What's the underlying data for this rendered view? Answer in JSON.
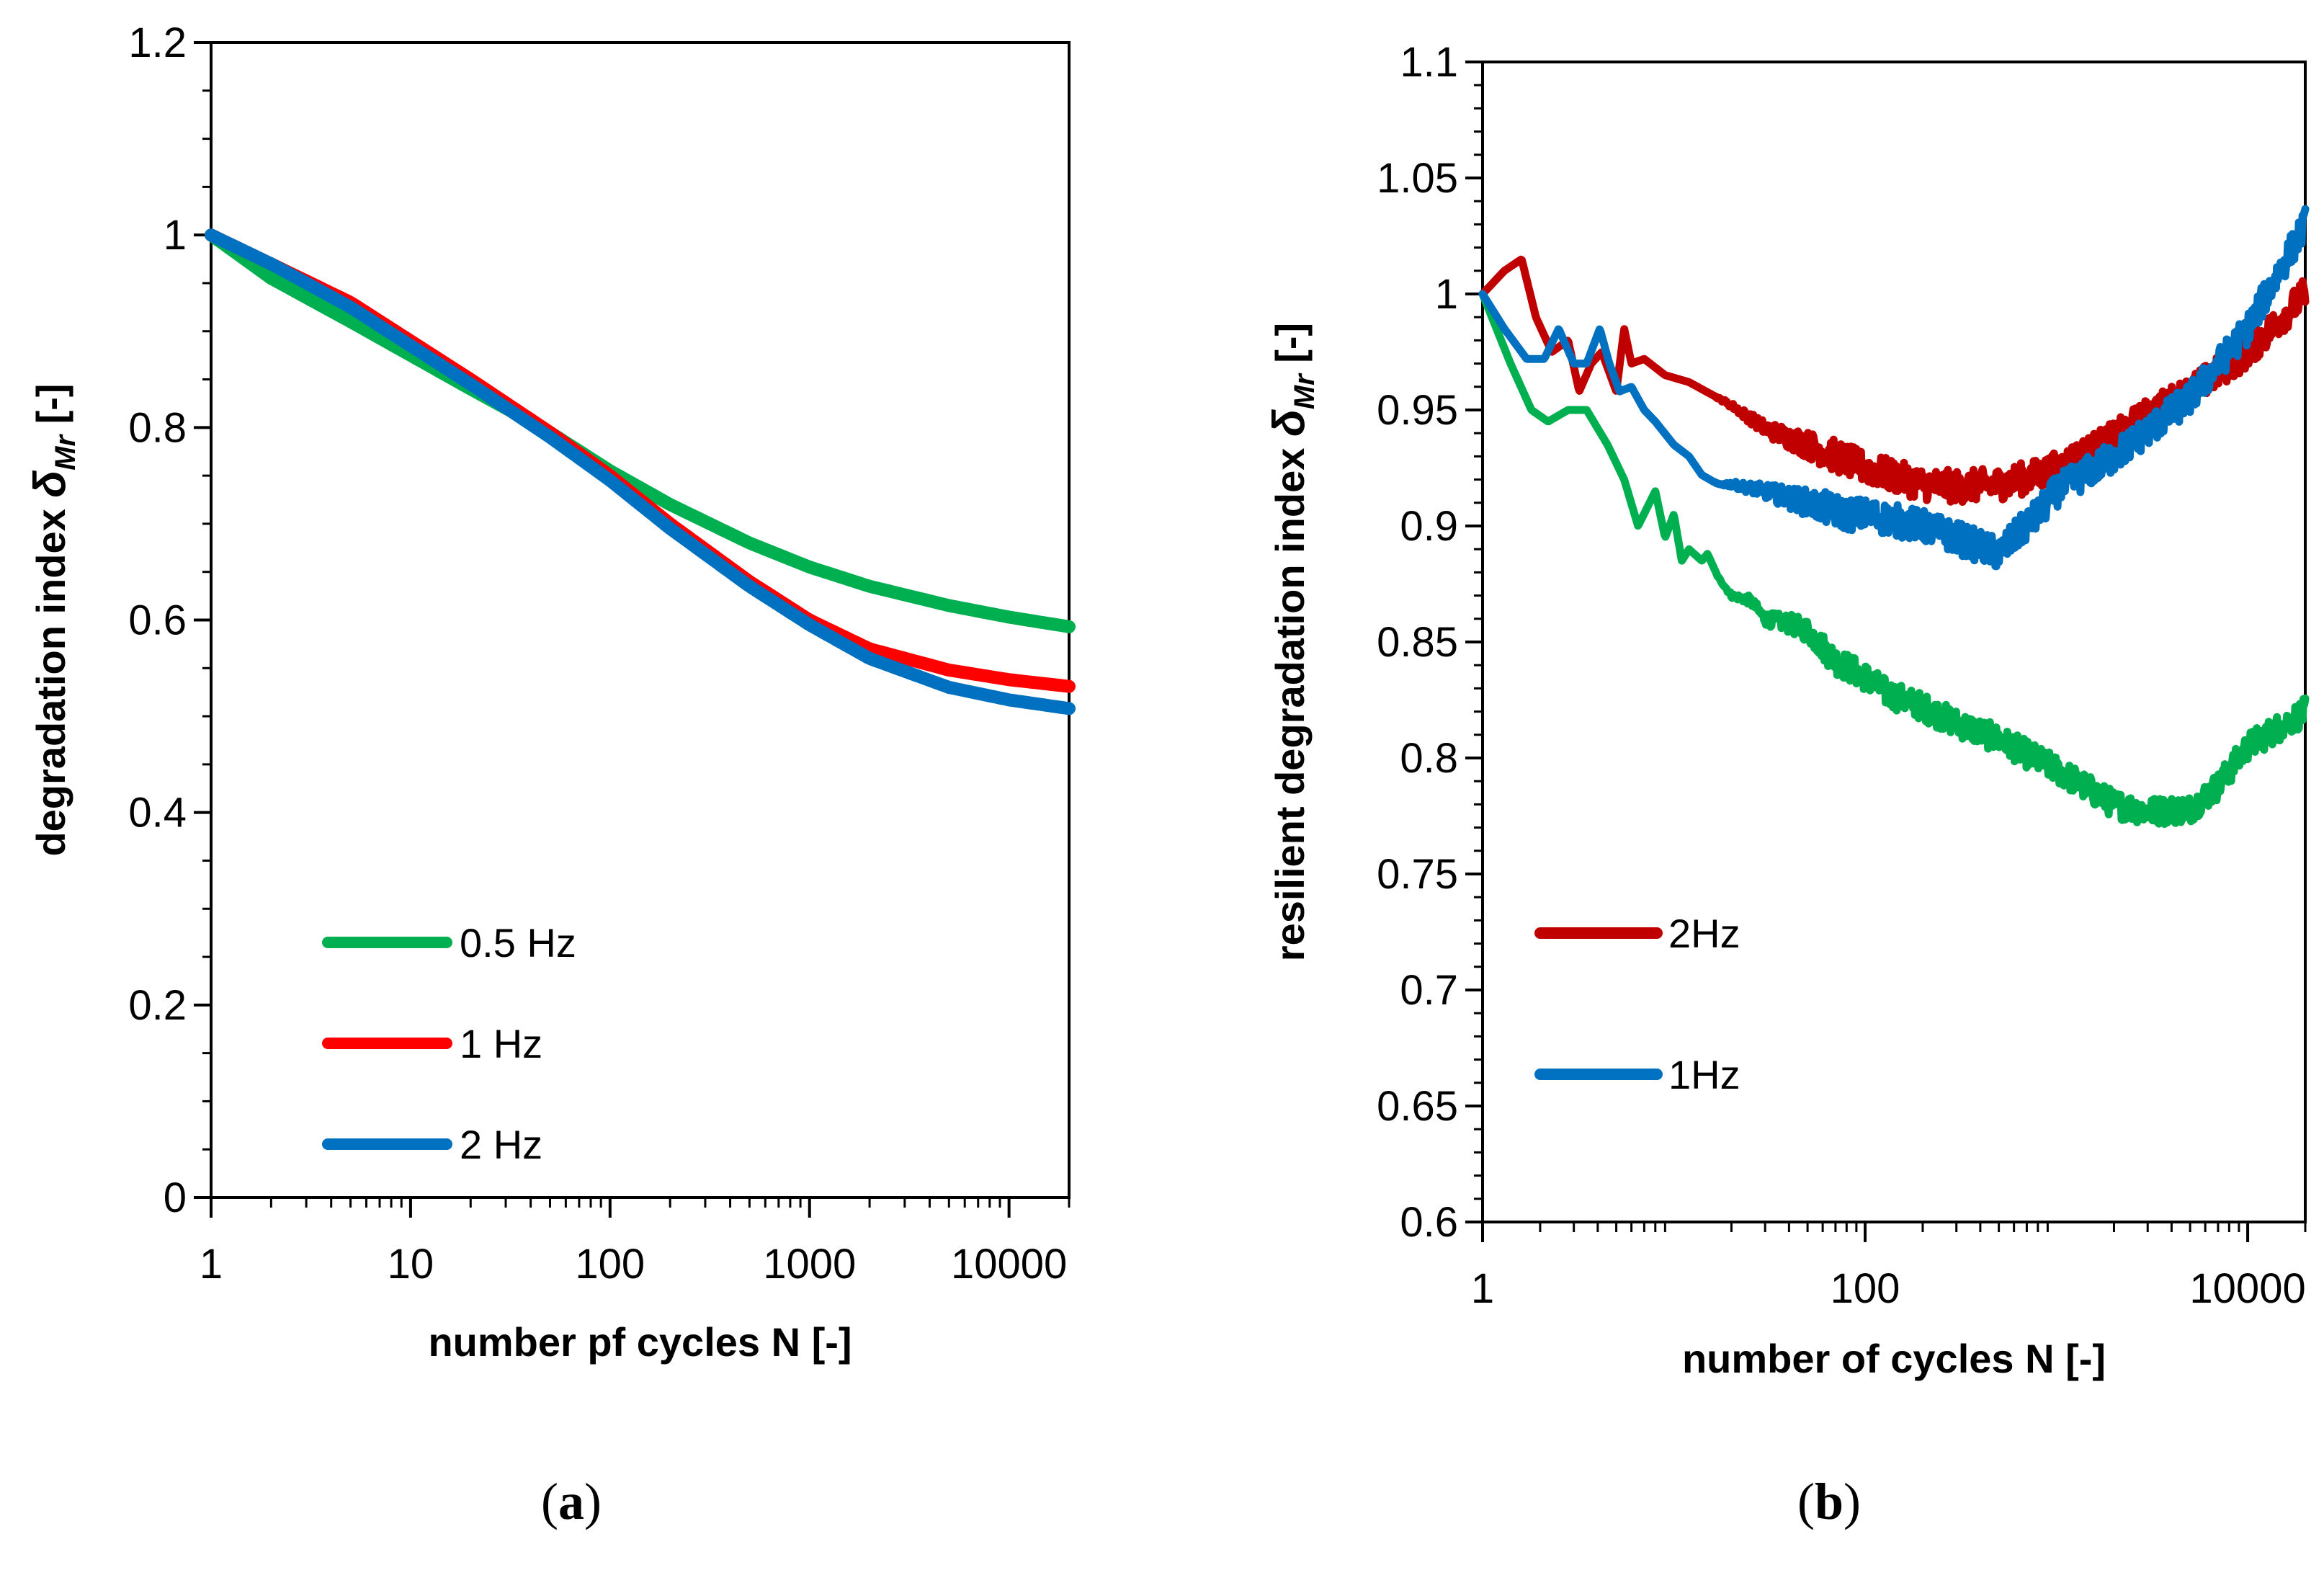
{
  "chart_data": [
    {
      "id": "a",
      "type": "line",
      "caption": {
        "open": "(",
        "letter": "a",
        "close": ")"
      },
      "xlabel": "number pf cycles N [-]",
      "ylabel_main": "degradation index ",
      "ylabel_symbol": "δ",
      "ylabel_sub": "Mr",
      "ylabel_unit": " [-]",
      "xscale": "log",
      "xlim": [
        1,
        20000
      ],
      "ylim": [
        0,
        1.2
      ],
      "x_ticks": [
        1,
        10,
        100,
        1000,
        10000
      ],
      "x_tick_labels": [
        "1",
        "10",
        "100",
        "1000",
        "10000"
      ],
      "y_ticks": [
        0,
        0.2,
        0.4,
        0.6,
        0.8,
        1,
        1.2
      ],
      "y_tick_labels": [
        "0",
        "0.2",
        "0.4",
        "0.6",
        "0.8",
        "1",
        "1.2"
      ],
      "legend_position": "lower-left",
      "series": [
        {
          "name": "0.5 Hz",
          "color": "#00b050",
          "x": [
            1,
            2,
            5,
            10,
            20,
            50,
            100,
            200,
            500,
            1000,
            2000,
            5000,
            10000,
            20000
          ],
          "y": [
            1.0,
            0.955,
            0.91,
            0.875,
            0.84,
            0.795,
            0.755,
            0.72,
            0.68,
            0.655,
            0.635,
            0.615,
            0.603,
            0.593
          ],
          "noise": 0,
          "zorder": 0
        },
        {
          "name": "1 Hz",
          "color": "#ff0000",
          "x": [
            1,
            2,
            5,
            10,
            20,
            50,
            100,
            200,
            500,
            1000,
            2000,
            5000,
            10000,
            20000
          ],
          "y": [
            1.0,
            0.97,
            0.93,
            0.89,
            0.85,
            0.795,
            0.75,
            0.7,
            0.64,
            0.6,
            0.57,
            0.548,
            0.538,
            0.531
          ],
          "noise": 0,
          "zorder": 1
        },
        {
          "name": "2 Hz",
          "color": "#0070c0",
          "x": [
            1,
            2,
            5,
            10,
            20,
            50,
            100,
            200,
            500,
            1000,
            2000,
            5000,
            10000,
            20000
          ],
          "y": [
            1.0,
            0.97,
            0.925,
            0.885,
            0.845,
            0.79,
            0.745,
            0.695,
            0.635,
            0.595,
            0.56,
            0.53,
            0.517,
            0.508
          ],
          "noise": 0,
          "zorder": 2
        }
      ]
    },
    {
      "id": "b",
      "type": "line",
      "caption": {
        "open": "(",
        "letter": "b",
        "close": ")"
      },
      "xlabel": "number of cycles N [-]",
      "ylabel_main": "resilient degradation index ",
      "ylabel_symbol": "δ",
      "ylabel_sub": "Mr",
      "ylabel_unit": " [-]",
      "xscale": "log",
      "xlim": [
        1,
        20000
      ],
      "ylim": [
        0.6,
        1.1
      ],
      "x_ticks": [
        1,
        100,
        10000
      ],
      "x_tick_labels": [
        "1",
        "100",
        "10000"
      ],
      "y_ticks": [
        0.6,
        0.65,
        0.7,
        0.75,
        0.8,
        0.85,
        0.9,
        0.95,
        1,
        1.05,
        1.1
      ],
      "y_tick_labels": [
        "0.6",
        "0.65",
        "0.7",
        "0.75",
        "0.8",
        "0.85",
        "0.9",
        "0.95",
        "1",
        "1.05",
        "1.1"
      ],
      "legend_position": "lower-left",
      "series": [
        {
          "name": "",
          "color": "#00b050",
          "in_legend": false,
          "x": [
            1,
            1.4,
            1.8,
            2.2,
            2.8,
            3.5,
            4.5,
            5.5,
            6.5,
            8,
            9,
            10,
            11,
            12,
            14,
            15,
            17,
            20,
            25,
            30,
            40,
            50,
            70,
            100,
            130,
            200,
            300,
            500,
            1000,
            2000,
            3000,
            5000,
            7000,
            10000,
            20000
          ],
          "y": [
            1.0,
            0.97,
            0.95,
            0.945,
            0.95,
            0.95,
            0.935,
            0.92,
            0.9,
            0.915,
            0.895,
            0.905,
            0.885,
            0.89,
            0.885,
            0.888,
            0.878,
            0.87,
            0.868,
            0.86,
            0.858,
            0.855,
            0.842,
            0.835,
            0.828,
            0.822,
            0.815,
            0.808,
            0.795,
            0.78,
            0.777,
            0.778,
            0.788,
            0.805,
            0.82
          ],
          "noise": 0.006,
          "zorder": 0
        },
        {
          "name": "2Hz",
          "color": "#c00000",
          "x": [
            1,
            1.3,
            1.6,
            1.9,
            2.3,
            2.8,
            3.2,
            3.7,
            4.2,
            5.0,
            5.5,
            6,
            7,
            9,
            12,
            20,
            30,
            50,
            100,
            200,
            300,
            500,
            800,
            1000,
            2000,
            3000,
            5000,
            10000,
            20000
          ],
          "y": [
            1.0,
            1.01,
            1.015,
            0.99,
            0.975,
            0.98,
            0.958,
            0.97,
            0.975,
            0.958,
            0.985,
            0.97,
            0.972,
            0.965,
            0.962,
            0.952,
            0.942,
            0.935,
            0.925,
            0.918,
            0.917,
            0.918,
            0.922,
            0.925,
            0.938,
            0.948,
            0.958,
            0.975,
            1.0
          ],
          "noise": 0.007,
          "zorder": 1
        },
        {
          "name": "1Hz",
          "color": "#0070c0",
          "x": [
            1,
            1.3,
            1.7,
            2.1,
            2.5,
            3.0,
            3.5,
            4.1,
            4.6,
            5.2,
            6,
            7,
            8,
            10,
            12,
            14,
            17,
            20,
            30,
            50,
            80,
            100,
            200,
            300,
            500,
            600,
            800,
            1000,
            2000,
            5000,
            10000,
            20000
          ],
          "y": [
            1.0,
            0.985,
            0.972,
            0.972,
            0.985,
            0.97,
            0.97,
            0.985,
            0.97,
            0.958,
            0.96,
            0.95,
            0.945,
            0.935,
            0.93,
            0.922,
            0.918,
            0.918,
            0.915,
            0.91,
            0.905,
            0.905,
            0.9,
            0.895,
            0.888,
            0.895,
            0.905,
            0.915,
            0.93,
            0.955,
            0.985,
            1.03
          ],
          "noise": 0.007,
          "zorder": 2
        }
      ]
    }
  ]
}
